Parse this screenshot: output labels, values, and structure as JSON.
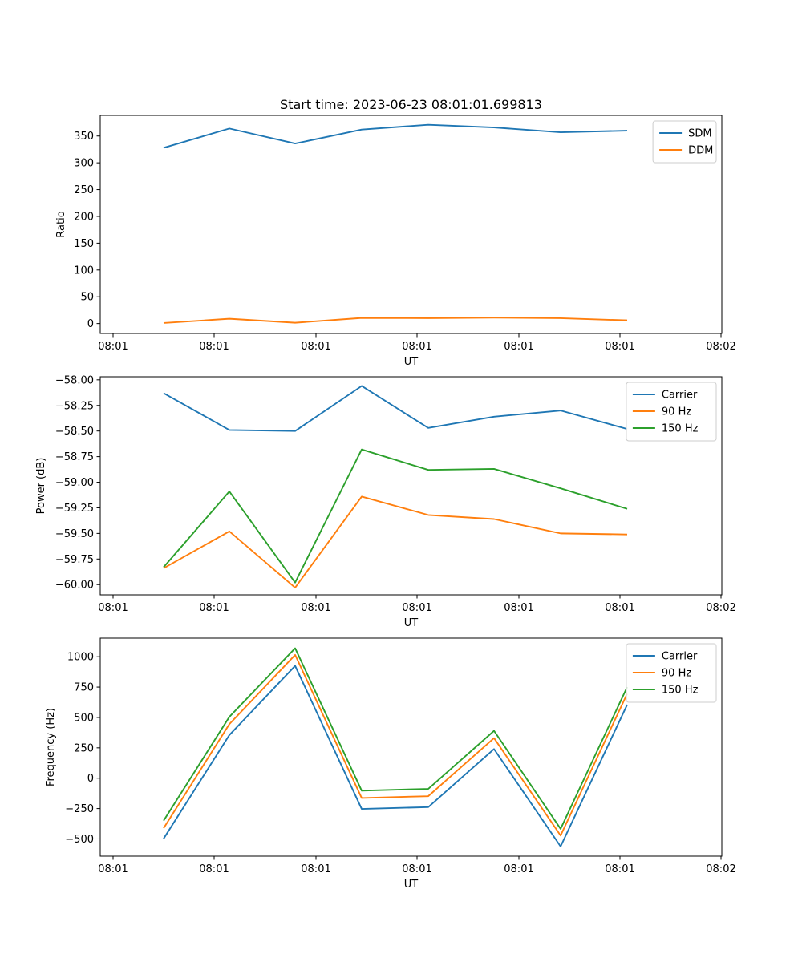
{
  "figure": {
    "title": "Start time: 2023-06-23 08:01:01.699813"
  },
  "chart_data": [
    {
      "type": "line",
      "title": "Start time: 2023-06-23 08:01:01.699813",
      "xlabel": "UT",
      "ylabel": "Ratio",
      "x_tick_labels": [
        "08:01",
        "08:01",
        "08:01",
        "08:01",
        "08:01",
        "08:01",
        "08:02"
      ],
      "y_ticks": [
        0,
        50,
        100,
        150,
        200,
        250,
        300,
        350
      ],
      "y_tick_labels": [
        "0",
        "50",
        "100",
        "150",
        "200",
        "250",
        "300",
        "350"
      ],
      "ylim": [
        -18.5,
        388.5
      ],
      "legend_position": "top-right",
      "series": [
        {
          "name": "SDM",
          "color": "#1f77b4",
          "values": [
            328,
            364,
            336,
            362,
            371,
            366,
            357,
            360
          ]
        },
        {
          "name": "DDM",
          "color": "#ff7f0e",
          "values": [
            1,
            9,
            1.5,
            10.5,
            10,
            11,
            10,
            6
          ]
        }
      ]
    },
    {
      "type": "line",
      "title": "",
      "xlabel": "UT",
      "ylabel": "Power (dB)",
      "x_tick_labels": [
        "08:01",
        "08:01",
        "08:01",
        "08:01",
        "08:01",
        "08:01",
        "08:02"
      ],
      "y_ticks": [
        -60.0,
        -59.75,
        -59.5,
        -59.25,
        -59.0,
        -58.75,
        -58.5,
        -58.25,
        -58.0
      ],
      "y_tick_labels": [
        "−60.00",
        "−59.75",
        "−59.50",
        "−59.25",
        "−59.00",
        "−58.75",
        "−58.50",
        "−58.25",
        "−58.00"
      ],
      "ylim": [
        -60.1,
        -57.97
      ],
      "legend_position": "top-right",
      "series": [
        {
          "name": "Carrier",
          "color": "#1f77b4",
          "values": [
            -58.13,
            -58.49,
            -58.5,
            -58.06,
            -58.47,
            -58.36,
            -58.3,
            -58.48
          ]
        },
        {
          "name": "90 Hz",
          "color": "#ff7f0e",
          "values": [
            -59.84,
            -59.48,
            -60.03,
            -59.14,
            -59.32,
            -59.36,
            -59.5,
            -59.51
          ]
        },
        {
          "name": "150 Hz",
          "color": "#2ca02c",
          "values": [
            -59.83,
            -59.09,
            -59.98,
            -58.68,
            -58.88,
            -58.87,
            -59.06,
            -59.26
          ]
        }
      ]
    },
    {
      "type": "line",
      "title": "",
      "xlabel": "UT",
      "ylabel": "Frequency (Hz)",
      "x_tick_labels": [
        "08:01",
        "08:01",
        "08:01",
        "08:01",
        "08:01",
        "08:01",
        "08:02"
      ],
      "y_ticks": [
        -500,
        -250,
        0,
        250,
        500,
        750,
        1000
      ],
      "y_tick_labels": [
        "−500",
        "−250",
        "0",
        "250",
        "500",
        "750",
        "1000"
      ],
      "ylim": [
        -642,
        1153
      ],
      "legend_position": "top-right",
      "series": [
        {
          "name": "Carrier",
          "color": "#1f77b4",
          "values": [
            -498,
            355,
            925,
            -253,
            -238,
            240,
            -562,
            605
          ]
        },
        {
          "name": "90 Hz",
          "color": "#ff7f0e",
          "values": [
            -412,
            445,
            1015,
            -163,
            -148,
            330,
            -472,
            695
          ]
        },
        {
          "name": "150 Hz",
          "color": "#2ca02c",
          "values": [
            -350,
            505,
            1070,
            -103,
            -88,
            390,
            -417,
            750
          ]
        }
      ]
    }
  ]
}
